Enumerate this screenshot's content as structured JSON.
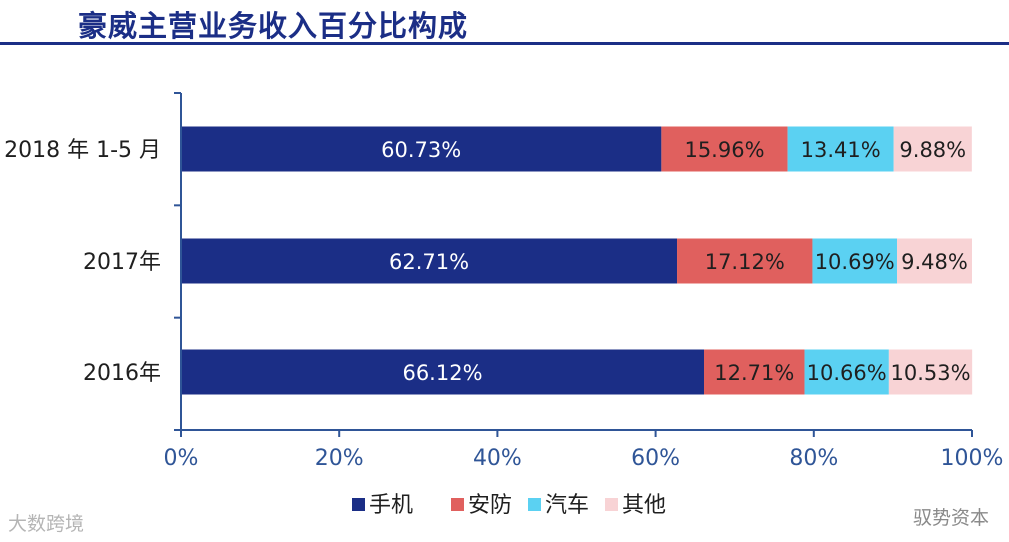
{
  "title": "豪威主营业务收入百分比构成",
  "watermarks": {
    "left": "大数跨境",
    "right": "驭势资本"
  },
  "colors": {
    "title": "#1b2e86",
    "axis": "#2f5597",
    "text": "#1f1f1f",
    "series": [
      "#1b2e86",
      "#e0605e",
      "#5bd1f2",
      "#f8d3d5"
    ],
    "label_text": [
      "#ffffff",
      "#1f1f1f",
      "#1f1f1f",
      "#1f1f1f"
    ]
  },
  "chart_data": {
    "type": "bar",
    "orientation": "horizontal",
    "stacked": true,
    "categories": [
      "2018 年 1-5 月",
      "2017年",
      "2016年"
    ],
    "series": [
      {
        "name": "手机",
        "values": [
          60.73,
          62.71,
          66.12
        ],
        "labels": [
          "60.73%",
          "62.71%",
          "66.12%"
        ]
      },
      {
        "name": "安防",
        "values": [
          15.96,
          17.12,
          12.71
        ],
        "labels": [
          "15.96%",
          "17.12%",
          "12.71%"
        ]
      },
      {
        "name": "汽车",
        "values": [
          13.41,
          10.69,
          10.66
        ],
        "labels": [
          "13.41%",
          "10.69%",
          "10.66%"
        ]
      },
      {
        "name": "其他",
        "values": [
          9.88,
          9.48,
          10.53
        ],
        "labels": [
          "9.88%",
          "9.48%",
          "10.53%"
        ]
      }
    ],
    "xlim": [
      0,
      100
    ],
    "xticks": [
      "0%",
      "20%",
      "40%",
      "60%",
      "80%",
      "100%"
    ],
    "legend_position": "bottom",
    "grid": false
  }
}
